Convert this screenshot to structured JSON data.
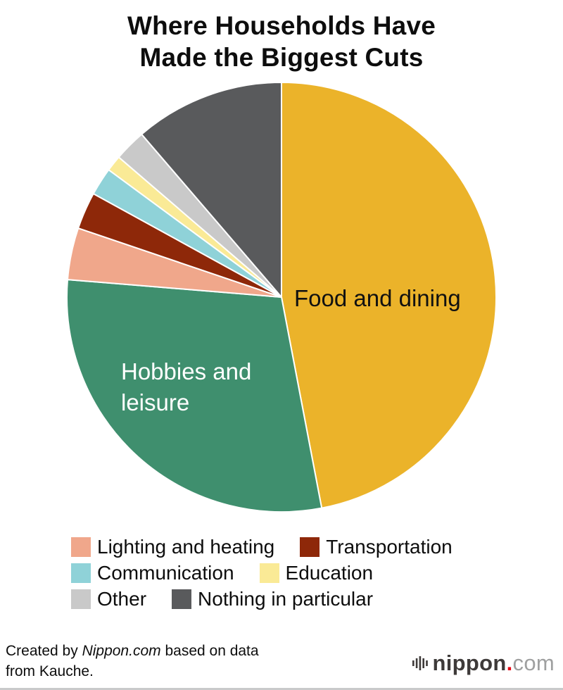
{
  "title_lines": [
    "Where Households Have",
    "Made the Biggest Cuts"
  ],
  "chart_data": {
    "type": "pie",
    "title": "Where Households Have Made the Biggest Cuts",
    "units": "percent",
    "start_angle": "top",
    "direction": "clockwise",
    "legend_position": "bottom",
    "slices": [
      {
        "label": "Food and dining",
        "value": 47.0,
        "color": "#ebb32a",
        "label_inside": true,
        "label_color": "#111111"
      },
      {
        "label": "Hobbies and leisure",
        "value": 29.3,
        "color": "#3f8f6e",
        "label_inside": true,
        "label_color": "#ffffff"
      },
      {
        "label": "Lighting and heating",
        "value": 3.9,
        "color": "#f0a78b",
        "label_inside": false
      },
      {
        "label": "Transportation",
        "value": 2.8,
        "color": "#8e2809",
        "label_inside": false
      },
      {
        "label": "Communication",
        "value": 2.1,
        "color": "#8fd2d8",
        "label_inside": false
      },
      {
        "label": "Education",
        "value": 1.2,
        "color": "#faea96",
        "label_inside": false
      },
      {
        "label": "Other",
        "value": 2.4,
        "color": "#c9c9c9",
        "label_inside": false
      },
      {
        "label": "Nothing in particular",
        "value": 11.3,
        "color": "#595a5c",
        "label_inside": false
      }
    ]
  },
  "footer": {
    "credit_prefix": "Created by ",
    "credit_brand": "Nippon.com",
    "credit_suffix": " based on data",
    "credit_line2": "from Kauche.",
    "logo_name": "nippon",
    "logo_dot": ".",
    "logo_tld": "com"
  },
  "colors": {
    "background": "#ffffff",
    "slice_divider": "#ffffff",
    "logo_mark": "#3e3a39",
    "logo_dot": "#e60012",
    "bottom_rule": "#c9cacb"
  }
}
